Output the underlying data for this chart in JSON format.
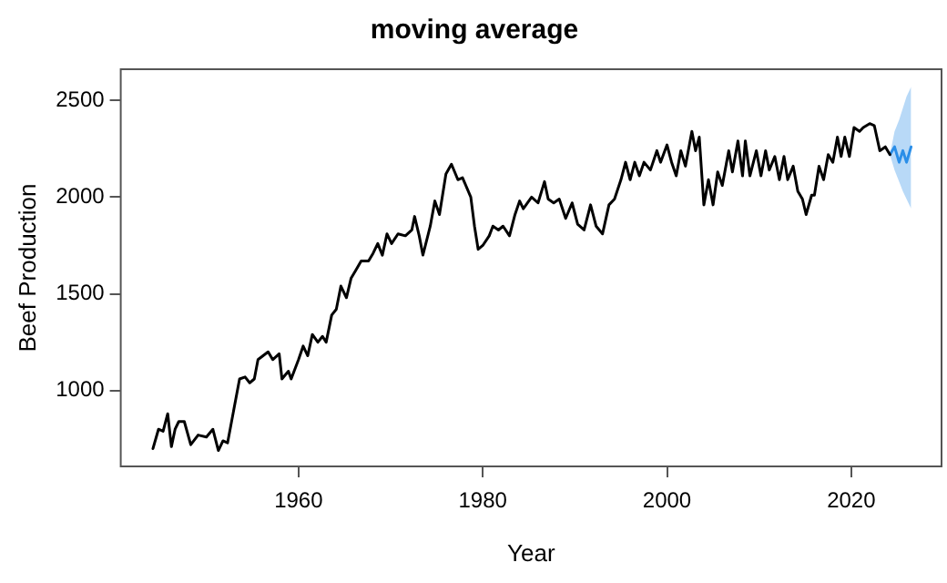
{
  "chart_data": {
    "type": "line",
    "title": "moving average",
    "xlabel": "Year",
    "ylabel": "Beef Production",
    "xlim": [
      1940.7,
      2029.8
    ],
    "xticks": [
      1960,
      1980,
      2000,
      2020
    ],
    "ylim": [
      608,
      2661
    ],
    "yticks": [
      1000,
      1500,
      2000,
      2500
    ],
    "grid": false,
    "legend": false,
    "marker": "none",
    "line_style": "solid",
    "series": [
      {
        "color": "#000000",
        "x": [
          1944.2,
          1944.8,
          1945.3,
          1945.8,
          1946.2,
          1946.6,
          1947.0,
          1947.6,
          1948.3,
          1949.1,
          1950.0,
          1950.7,
          1951.3,
          1951.8,
          1952.3,
          1953.6,
          1954.2,
          1954.7,
          1955.2,
          1955.6,
          1956.7,
          1957.2,
          1957.9,
          1958.2,
          1958.9,
          1959.2,
          1960.0,
          1960.5,
          1961.0,
          1961.5,
          1962.1,
          1962.6,
          1963.0,
          1963.6,
          1964.1,
          1964.6,
          1965.2,
          1965.7,
          1966.2,
          1966.8,
          1967.6,
          1968.1,
          1968.6,
          1969.1,
          1969.6,
          1970.1,
          1970.8,
          1971.6,
          1972.3,
          1972.6,
          1973.1,
          1973.5,
          1974.3,
          1974.8,
          1975.3,
          1976.0,
          1976.6,
          1977.3,
          1977.8,
          1978.7,
          1979.1,
          1979.5,
          1980.0,
          1980.7,
          1981.1,
          1981.7,
          1982.2,
          1982.9,
          1983.5,
          1984.0,
          1984.4,
          1985.3,
          1986.0,
          1986.7,
          1987.1,
          1987.7,
          1988.3,
          1989.0,
          1989.7,
          1990.3,
          1991.0,
          1991.7,
          1992.3,
          1993.0,
          1993.7,
          1994.3,
          1995.0,
          1995.5,
          1996.0,
          1996.5,
          1997.0,
          1997.5,
          1998.2,
          1998.9,
          1999.3,
          2000.0,
          2000.5,
          2001.0,
          2001.5,
          2002.0,
          2002.7,
          2003.1,
          2003.5,
          2004.0,
          2004.5,
          2005.0,
          2005.5,
          2006.0,
          2006.7,
          2007.1,
          2007.7,
          2008.2,
          2008.5,
          2009.0,
          2009.7,
          2010.2,
          2010.7,
          2011.1,
          2011.7,
          2012.2,
          2012.7,
          2013.1,
          2013.7,
          2014.2,
          2014.7,
          2015.1,
          2015.7,
          2016.0,
          2016.5,
          2017.0,
          2017.5,
          2018.0,
          2018.5,
          2018.9,
          2019.3,
          2019.8,
          2020.3,
          2020.9,
          2021.3,
          2022.0,
          2022.5,
          2023.1,
          2023.7,
          2024.2
        ],
        "values": [
          700,
          800,
          790,
          880,
          710,
          800,
          840,
          840,
          720,
          770,
          760,
          800,
          690,
          740,
          730,
          1060,
          1070,
          1040,
          1060,
          1160,
          1200,
          1160,
          1190,
          1060,
          1100,
          1060,
          1160,
          1230,
          1180,
          1290,
          1250,
          1280,
          1250,
          1390,
          1420,
          1540,
          1480,
          1580,
          1620,
          1670,
          1670,
          1710,
          1760,
          1700,
          1810,
          1760,
          1810,
          1800,
          1830,
          1900,
          1800,
          1700,
          1850,
          1980,
          1910,
          2120,
          2170,
          2090,
          2100,
          2000,
          1850,
          1730,
          1750,
          1800,
          1850,
          1830,
          1850,
          1800,
          1910,
          1980,
          1940,
          2000,
          1970,
          2080,
          1990,
          1970,
          1990,
          1890,
          1970,
          1860,
          1830,
          1960,
          1850,
          1810,
          1960,
          1990,
          2090,
          2180,
          2090,
          2180,
          2110,
          2180,
          2140,
          2240,
          2180,
          2270,
          2180,
          2110,
          2240,
          2160,
          2340,
          2240,
          2310,
          1960,
          2090,
          1960,
          2130,
          2060,
          2240,
          2130,
          2290,
          2110,
          2290,
          2110,
          2240,
          2110,
          2240,
          2140,
          2210,
          2090,
          2210,
          2090,
          2160,
          2030,
          1990,
          1910,
          2010,
          2010,
          2160,
          2090,
          2220,
          2180,
          2310,
          2210,
          2310,
          2210,
          2360,
          2340,
          2360,
          2380,
          2370,
          2240,
          2260,
          2220
        ]
      },
      {
        "color": "#2a8ee8",
        "x": [
          2024.2,
          2024.7,
          2025.2,
          2025.6,
          2026.0,
          2026.5
        ],
        "values": [
          2220,
          2260,
          2180,
          2240,
          2180,
          2260
        ],
        "lower": [
          2220,
          2140,
          2080,
          2030,
          1990,
          1940
        ],
        "upper": [
          2220,
          2340,
          2400,
          2460,
          2520,
          2570
        ]
      }
    ]
  }
}
